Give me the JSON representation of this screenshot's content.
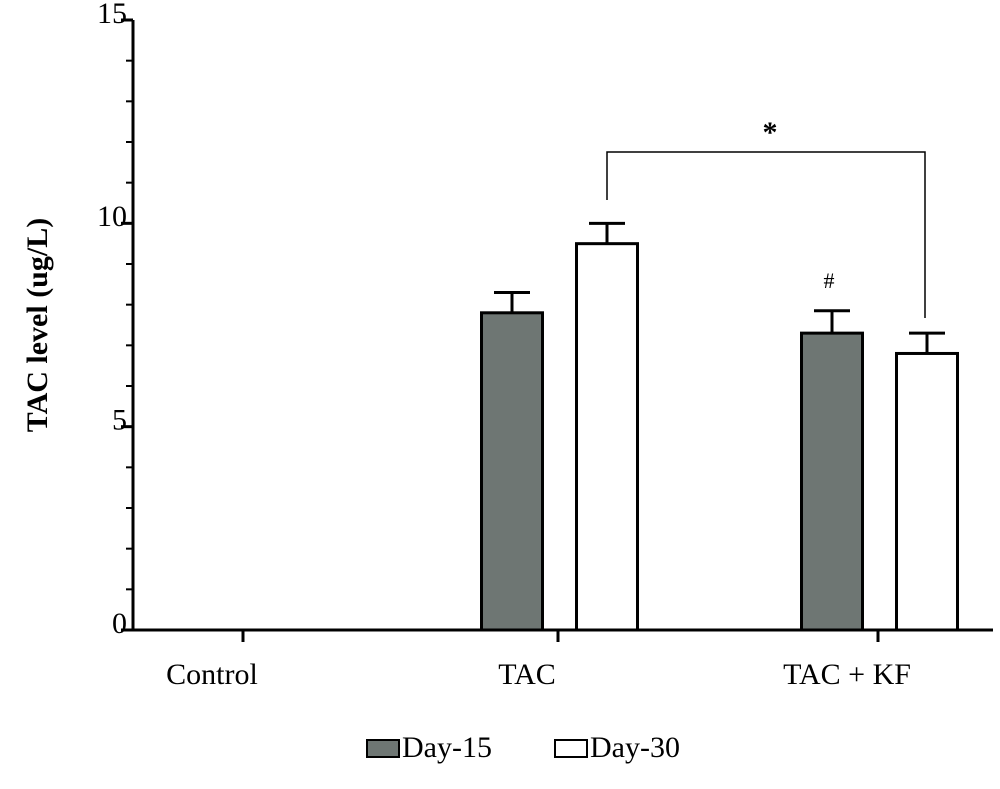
{
  "chart_data": {
    "type": "bar",
    "y_label": "TAC level (ug/L)",
    "categories": [
      "Control",
      "TAC",
      "TAC + KF"
    ],
    "series": [
      {
        "name": "Day-15",
        "color": "#6e7673",
        "values": [
          null,
          7.8,
          7.3
        ],
        "errors": [
          null,
          0.5,
          0.55
        ]
      },
      {
        "name": "Day-30",
        "color": "#ffffff",
        "values": [
          null,
          9.5,
          6.8
        ],
        "errors": [
          null,
          0.5,
          0.5
        ]
      }
    ],
    "ylim": [
      0,
      15
    ],
    "yticks": [
      0,
      5,
      10,
      15
    ],
    "yminorticks": [
      1,
      2,
      3,
      4,
      6,
      7,
      8,
      9,
      11,
      12,
      13,
      14
    ],
    "annotations": [
      {
        "text": "*"
      },
      {
        "text": "#"
      }
    ]
  }
}
